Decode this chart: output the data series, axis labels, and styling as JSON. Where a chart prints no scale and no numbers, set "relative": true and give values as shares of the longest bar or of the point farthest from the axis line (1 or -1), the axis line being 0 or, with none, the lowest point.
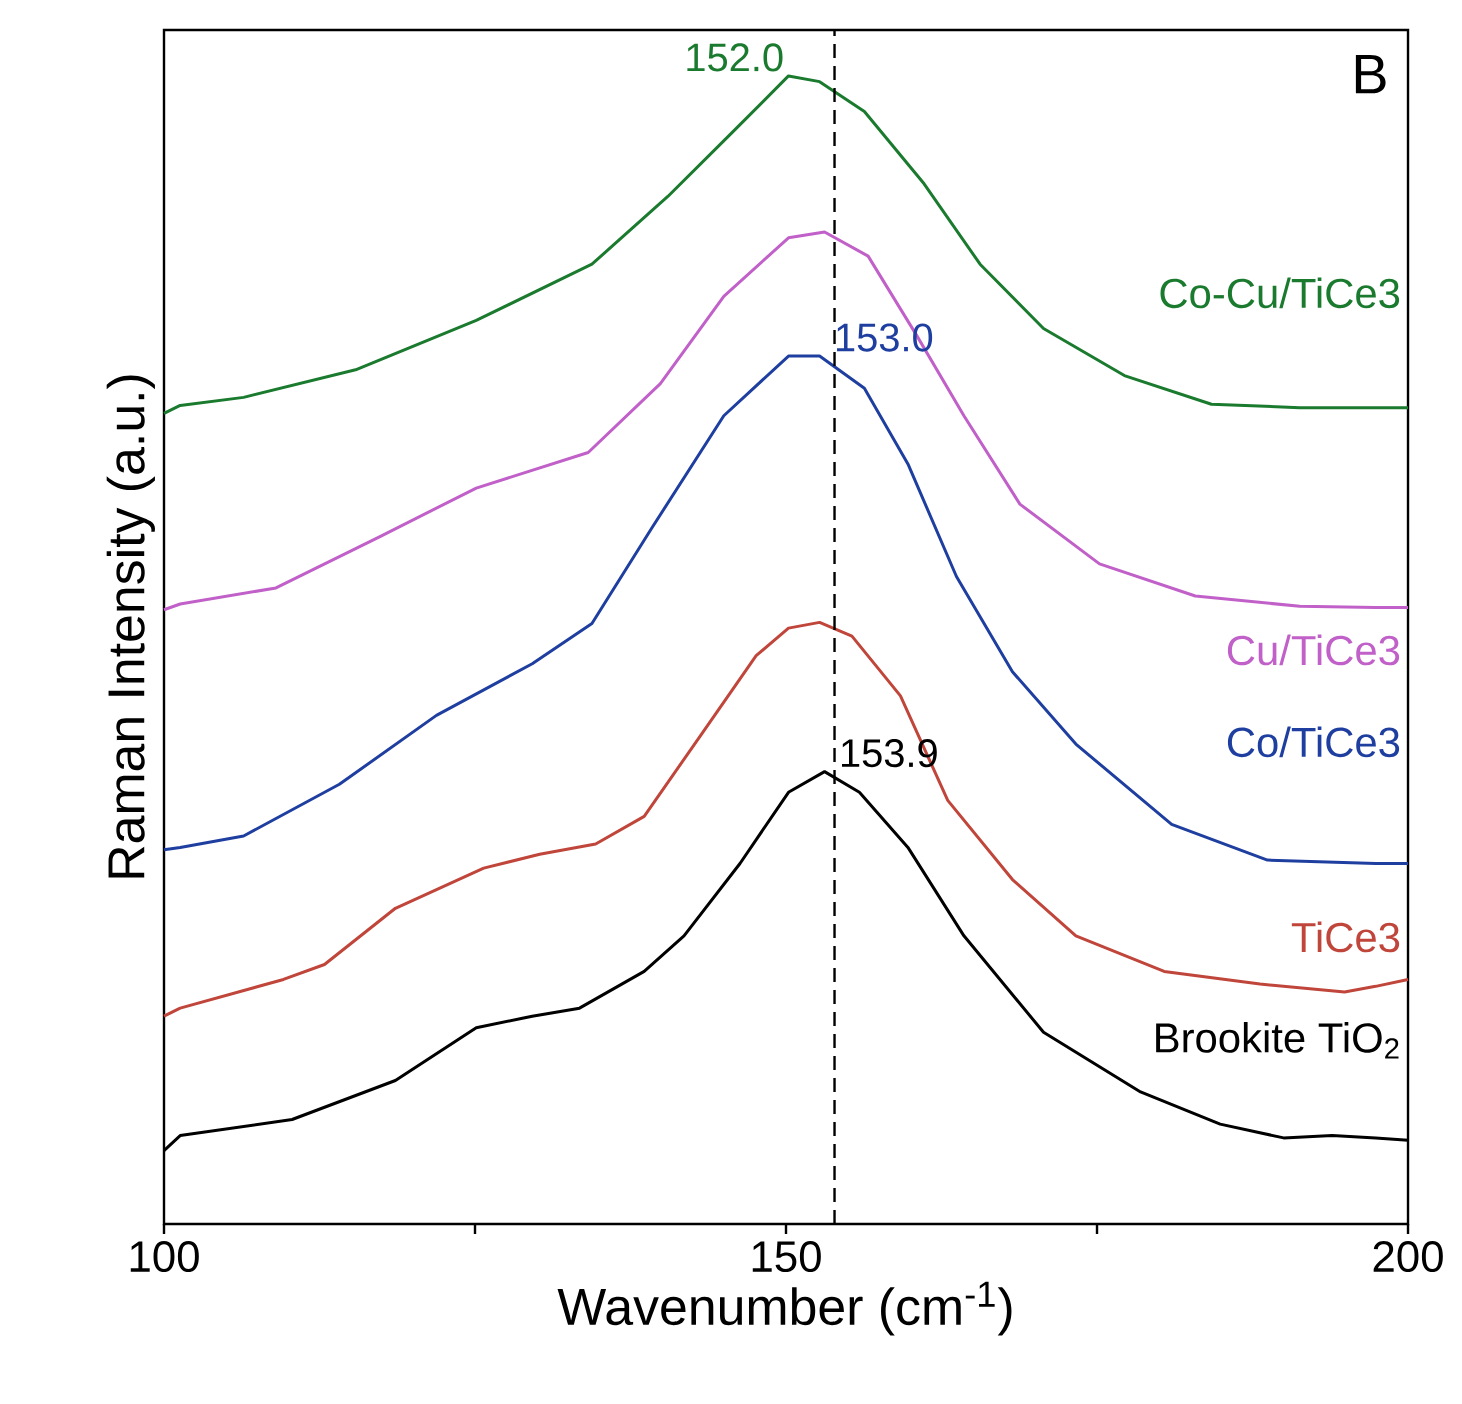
{
  "chart_data": {
    "type": "line",
    "relative": true,
    "xlabel": "Wavenumber (cm$^{-1}$)",
    "ylabel": "Raman Intensity (a.u.)",
    "xlim": [
      100,
      200
    ],
    "xticks": [
      100,
      {
        "value": 125,
        "label": null
      },
      150,
      {
        "value": 175,
        "label": null
      },
      200
    ],
    "tick_labels": "x",
    "grid": false,
    "legend": false,
    "line_style": "solid",
    "series": [
      {
        "name": "Co-Cu/TiCe3",
        "color": "#1a7a2e",
        "x": [
          100,
          101.3,
          106.4,
          115.4,
          125.1,
          134.4,
          140.5,
          145.7,
          150.2,
          152.7,
          156.3,
          161.1,
          165.6,
          170.7,
          177.2,
          184.2,
          191.3,
          197.4,
          200
        ],
        "values": [
          0.706,
          0.713,
          0.72,
          0.744,
          0.787,
          0.836,
          0.895,
          0.951,
          1.0,
          0.995,
          0.969,
          0.906,
          0.836,
          0.78,
          0.739,
          0.714,
          0.711,
          0.711,
          0.711
        ]
      },
      {
        "name": "Cu/TiCe3",
        "color": "#c060c8",
        "x": [
          100,
          101.3,
          109.0,
          117.4,
          125.1,
          134.1,
          139.9,
          145.0,
          150.2,
          153.1,
          156.6,
          160.5,
          164.3,
          168.8,
          175.2,
          182.9,
          191.3,
          197.4,
          200
        ],
        "values": [
          0.535,
          0.54,
          0.554,
          0.599,
          0.641,
          0.672,
          0.732,
          0.808,
          0.859,
          0.864,
          0.843,
          0.774,
          0.704,
          0.627,
          0.575,
          0.547,
          0.538,
          0.537,
          0.537
        ]
      },
      {
        "name": "Co/TiCe3",
        "color": "#1f3fa0",
        "x": [
          100,
          101.3,
          106.4,
          114.1,
          121.9,
          129.6,
          134.4,
          139.2,
          145.0,
          150.2,
          152.7,
          156.3,
          159.8,
          163.7,
          168.2,
          173.3,
          181.0,
          188.7,
          197.4,
          200
        ],
        "values": [
          0.326,
          0.328,
          0.338,
          0.383,
          0.443,
          0.488,
          0.523,
          0.606,
          0.704,
          0.756,
          0.756,
          0.728,
          0.662,
          0.564,
          0.481,
          0.418,
          0.348,
          0.317,
          0.314,
          0.314
        ]
      },
      {
        "name": "TiCe3",
        "color": "#c0453a",
        "x": [
          100,
          101.3,
          109.6,
          112.9,
          118.6,
          125.7,
          130.2,
          134.7,
          138.6,
          143.1,
          147.6,
          150.2,
          152.7,
          155.3,
          159.2,
          163.0,
          168.2,
          173.3,
          180.4,
          188.1,
          194.9,
          197.4,
          200
        ],
        "values": [
          0.181,
          0.188,
          0.213,
          0.226,
          0.275,
          0.31,
          0.322,
          0.331,
          0.355,
          0.425,
          0.495,
          0.519,
          0.524,
          0.512,
          0.46,
          0.369,
          0.3,
          0.251,
          0.22,
          0.209,
          0.202,
          0.207,
          0.213
        ]
      },
      {
        "name": "Brookite TiO$_{2}$",
        "color": "#000000",
        "x": [
          100,
          101.3,
          110.3,
          118.6,
          125.1,
          129.6,
          133.4,
          138.6,
          141.8,
          146.3,
          150.2,
          153.1,
          155.9,
          159.8,
          164.3,
          170.7,
          178.5,
          184.9,
          190.0,
          193.9,
          197.4,
          200
        ],
        "values": [
          0.064,
          0.077,
          0.091,
          0.125,
          0.171,
          0.181,
          0.188,
          0.22,
          0.251,
          0.314,
          0.376,
          0.394,
          0.376,
          0.328,
          0.251,
          0.167,
          0.115,
          0.087,
          0.075,
          0.077,
          0.075,
          0.073
        ]
      }
    ],
    "ref_lines": [
      {
        "axis": "x",
        "value": 153.9,
        "color": "#000000",
        "line_style": "dashed"
      }
    ],
    "annotations": [
      {
        "text": "152.0",
        "x": 150.2,
        "y": 1.0
      },
      {
        "text": "153.0",
        "x": 152.7,
        "y": 0.756
      },
      {
        "text": "153.9",
        "x": 153.1,
        "y": 0.394
      },
      "B"
    ]
  }
}
